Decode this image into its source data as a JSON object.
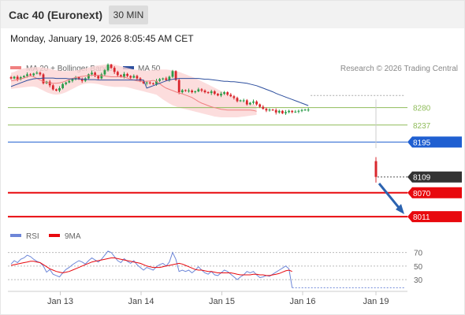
{
  "header": {
    "title": "Cac 40 (Euronext)",
    "interval": "30 MIN",
    "datetime": "Monday, January 19, 2026 8:05:45 AM CET"
  },
  "legend": {
    "ma20_label": "MA 20 + Bollinger Bands",
    "ma50_label": "MA 50",
    "copyright": "Research © 2026 Trading Central"
  },
  "rsi_legend": {
    "rsi_label": "RSI",
    "ma_label": "9MA"
  },
  "colors": {
    "bollinger_fill": "#fbd5d5",
    "ma20": "#f08080",
    "ma50": "#2d4f9e",
    "candle_up": "#2b9c4a",
    "candle_down": "#d9272d",
    "support_green": "#8fbc5a",
    "pivot_blue": "#1f5fd1",
    "resistance_red": "#e8090e",
    "last_price": "#333333",
    "rsi": "#6d86d8",
    "rsi_ma": "#e8090e",
    "arrow": "#2c63b0"
  },
  "chart_data": {
    "type": "candlestick",
    "instrument": "Cac 40 (Euronext)",
    "timeframe": "30 MIN",
    "x_ticks": [
      "Jan 13",
      "Jan 14",
      "Jan 15",
      "Jan 16",
      "Jan 19"
    ],
    "x_tick_index": [
      5,
      30,
      55,
      80,
      105
    ],
    "y_range": [
      7990,
      8390
    ],
    "levels": [
      {
        "value": 8280,
        "label": "8280",
        "kind": "target-2"
      },
      {
        "value": 8237,
        "label": "8237",
        "kind": "target-1"
      },
      {
        "value": 8195,
        "label": "8195",
        "kind": "pivot"
      },
      {
        "value": 8070,
        "label": "8070",
        "kind": "support-1"
      },
      {
        "value": 8011,
        "label": "8011",
        "kind": "support-2"
      }
    ],
    "last_price": {
      "value": 8109,
      "label": "8109"
    },
    "closes": [
      8352,
      8356,
      8350,
      8355,
      8358,
      8362,
      8360,
      8364,
      8366,
      8362,
      8340,
      8344,
      8335,
      8325,
      8322,
      8328,
      8338,
      8342,
      8346,
      8350,
      8355,
      8350,
      8346,
      8352,
      8362,
      8366,
      8358,
      8352,
      8362,
      8372,
      8386,
      8378,
      8368,
      8360,
      8356,
      8363,
      8358,
      8354,
      8358,
      8352,
      8346,
      8340,
      8342,
      8340,
      8338,
      8346,
      8350,
      8352,
      8348,
      8356,
      8370,
      8348,
      8318,
      8323,
      8321,
      8322,
      8318,
      8320,
      8325,
      8322,
      8318,
      8316,
      8320,
      8314,
      8310,
      8314,
      8318,
      8312,
      8308,
      8304,
      8296,
      8298,
      8298,
      8288,
      8292,
      8295,
      8288,
      8282,
      8277,
      8273,
      8275,
      8274,
      8268,
      8272,
      8266,
      8269,
      8272,
      8269,
      8270,
      8272,
      8274,
      8275,
      8275
    ],
    "gap_candle": {
      "open": 8148,
      "close": 8109,
      "high": 8158,
      "low": 8095
    },
    "ma20_y": [
      8346,
      8347,
      8349,
      8351,
      8353,
      8356,
      8358,
      8356,
      8352,
      8348,
      8345,
      8342,
      8341,
      8340,
      8340,
      8341,
      8343,
      8346,
      8349,
      8352,
      8354,
      8356,
      8357,
      8358,
      8359,
      8360,
      8360,
      8360,
      8359,
      8358,
      8357,
      8356,
      8356,
      8356,
      8356,
      8355,
      8353,
      8350,
      8348,
      8346,
      8345,
      8345,
      8345,
      8346,
      8347,
      8345,
      8339,
      8333,
      8328,
      8325,
      8322,
      8319,
      8316,
      8314,
      8311,
      8308,
      8305,
      8300,
      8295,
      8291,
      8288,
      8285,
      8282,
      8280,
      8278,
      8276,
      8275,
      8274,
      8274,
      8274,
      8274,
      8274,
      8274,
      8274,
      8274,
      8273,
      8271
    ],
    "ma50_y": [
      8328,
      8331,
      8334,
      8337,
      8340,
      8343,
      8346,
      8348,
      8350,
      8351,
      8352,
      8352,
      8352,
      8352,
      8352,
      8352,
      8352,
      8351,
      8350,
      8350,
      8349,
      8348,
      8347,
      8346,
      8345,
      8345,
      8344,
      8344,
      8343,
      8342,
      8341,
      8340,
      8338,
      8336,
      8334,
      8331,
      8328,
      8325,
      8322,
      8319,
      8315,
      8312,
      8309,
      8306,
      8303,
      8300,
      8297,
      8294,
      8291,
      8288,
      8285
    ],
    "bollinger_upper": [
      8366,
      8368,
      8372,
      8375,
      8377,
      8378,
      8379,
      8380,
      8380,
      8380,
      8379,
      8378,
      8376,
      8374,
      8372,
      8371,
      8370,
      8370,
      8370,
      8371,
      8372,
      8373,
      8375,
      8377,
      8379,
      8381,
      8383,
      8384,
      8385,
      8386,
      8387,
      8387,
      8386,
      8384,
      8382,
      8380,
      8378,
      8376,
      8374,
      8373,
      8372,
      8371,
      8371,
      8372,
      8373,
      8373,
      8374,
      8374,
      8374,
      8373,
      8372,
      8370,
      8368,
      8365,
      8362,
      8359,
      8356,
      8353,
      8349,
      8345,
      8341,
      8337,
      8333,
      8329,
      8325,
      8321,
      8317,
      8313,
      8309,
      8305,
      8301,
      8298,
      8295,
      8292,
      8290,
      8288,
      8286
    ],
    "bollinger_lower": [
      8326,
      8327,
      8328,
      8329,
      8330,
      8331,
      8332,
      8332,
      8330,
      8326,
      8322,
      8318,
      8315,
      8313,
      8312,
      8313,
      8315,
      8318,
      8322,
      8326,
      8330,
      8334,
      8337,
      8339,
      8340,
      8340,
      8339,
      8338,
      8336,
      8334,
      8333,
      8332,
      8331,
      8331,
      8331,
      8331,
      8330,
      8328,
      8326,
      8324,
      8322,
      8320,
      8318,
      8316,
      8314,
      8312,
      8306,
      8300,
      8295,
      8290,
      8286,
      8283,
      8280,
      8278,
      8276,
      8274,
      8272,
      8270,
      8268,
      8266,
      8264,
      8262,
      8260,
      8258,
      8257,
      8256,
      8256,
      8256,
      8256,
      8256,
      8256,
      8257,
      8258,
      8259,
      8260,
      8261,
      8262
    ],
    "rsi": {
      "levels": [
        70,
        50,
        30
      ],
      "values": [
        53,
        58,
        55,
        60,
        62,
        66,
        64,
        60,
        57,
        55,
        50,
        41,
        45,
        38,
        36,
        34,
        40,
        45,
        48,
        52,
        55,
        58,
        56,
        53,
        58,
        62,
        59,
        56,
        60,
        66,
        72,
        70,
        64,
        58,
        55,
        61,
        57,
        54,
        58,
        52,
        48,
        44,
        48,
        46,
        44,
        49,
        52,
        54,
        50,
        56,
        70,
        60,
        42,
        44,
        42,
        44,
        40,
        44,
        49,
        44,
        40,
        38,
        42,
        37,
        36,
        40,
        44,
        42,
        38,
        34,
        30,
        34,
        37,
        42,
        40,
        42,
        37,
        33,
        34,
        36,
        35,
        38,
        41,
        44,
        47,
        50,
        46,
        18
      ],
      "ma9": [
        51,
        52,
        53,
        54,
        55,
        56,
        57,
        57,
        56,
        55,
        52,
        49,
        46,
        44,
        42,
        41,
        40,
        41,
        42,
        44,
        46,
        48,
        50,
        52,
        54,
        56,
        57,
        58,
        59,
        60,
        61,
        62,
        62,
        61,
        60,
        59,
        58,
        57,
        56,
        55,
        54,
        52,
        50,
        49,
        48,
        48,
        48,
        49,
        50,
        51,
        52,
        53,
        54,
        53,
        51,
        49,
        47,
        45,
        44,
        44,
        43,
        42,
        42,
        41,
        40,
        40,
        40,
        40,
        40,
        39,
        38,
        37,
        37,
        37,
        37,
        38,
        38,
        37,
        37,
        36,
        36,
        37,
        38,
        39,
        41,
        43,
        44,
        42
      ]
    }
  }
}
